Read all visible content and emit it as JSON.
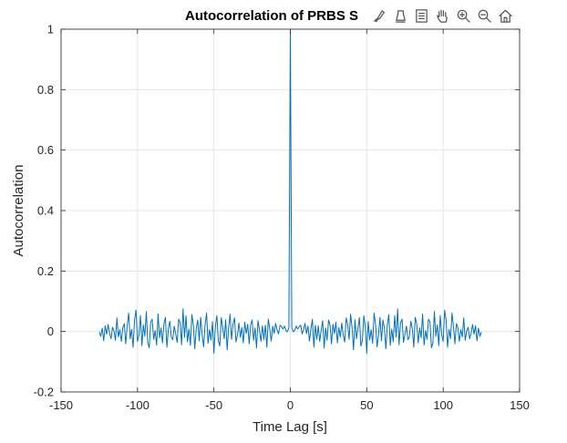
{
  "chart_data": {
    "type": "line",
    "title": "Autocorrelation of PRBS S",
    "xlabel": "Time Lag [s]",
    "ylabel": "Autocorrelation",
    "xlim": [
      -150,
      150
    ],
    "ylim": [
      -0.2,
      1
    ],
    "xticks": [
      "-150",
      "-100",
      "-50",
      "0",
      "50",
      "100",
      "150"
    ],
    "yticks": [
      "-0.2",
      "0",
      "0.2",
      "0.4",
      "0.6",
      "0.8",
      "1"
    ],
    "grid": true,
    "line_color": "#0072bd",
    "series": [
      {
        "x_range": [
          -125,
          125
        ],
        "values": [
          -0.002,
          -0.016,
          0.011,
          -0.031,
          0.019,
          -0.009,
          0.023,
          -0.005,
          -0.024,
          0.014,
          0.002,
          -0.029,
          0.045,
          -0.018,
          0.006,
          -0.033,
          0.012,
          0.026,
          -0.041,
          0.018,
          0.061,
          -0.024,
          0.007,
          -0.052,
          0.038,
          0.071,
          -0.033,
          -0.011,
          0.053,
          -0.047,
          0.022,
          -0.016,
          0.066,
          -0.038,
          -0.054,
          0.032,
          0.041,
          -0.026,
          0.003,
          -0.045,
          0.058,
          -0.021,
          0.012,
          -0.038,
          0.026,
          0.047,
          -0.052,
          0.009,
          0.034,
          -0.018,
          -0.027,
          0.018,
          -0.008,
          -0.036,
          0.041,
          0.029,
          -0.044,
          0.075,
          -0.019,
          0.052,
          -0.034,
          0.008,
          -0.046,
          0.056,
          0.022,
          -0.057,
          0.011,
          0.038,
          -0.031,
          0.047,
          -0.012,
          -0.051,
          0.023,
          0.061,
          -0.039,
          0.006,
          -0.028,
          0.033,
          -0.072,
          0.018,
          0.052,
          -0.031,
          -0.048,
          0.046,
          0.011,
          -0.024,
          0.039,
          -0.061,
          0.013,
          0.057,
          -0.026,
          0.024,
          0.045,
          -0.035,
          -0.012,
          0.028,
          -0.019,
          0.013,
          -0.038,
          0.031,
          -0.007,
          0.024,
          -0.041,
          0.022,
          0.038,
          -0.029,
          0.012,
          -0.055,
          0.036,
          0.004,
          -0.033,
          0.019,
          -0.026,
          0.021,
          -0.052,
          0.041,
          0.008,
          -0.032,
          0.018,
          -0.007,
          0.027,
          0.005,
          -0.008,
          0.021,
          0.016,
          0.008,
          0.018,
          0.004,
          -0.001,
          0.012,
          1,
          0.012,
          -0.001,
          0.004,
          0.018,
          0.008,
          0.016,
          0.021,
          -0.008,
          0.005,
          0.027,
          -0.007,
          0.018,
          -0.032,
          0.008,
          0.041,
          -0.052,
          0.021,
          -0.026,
          0.019,
          -0.033,
          0.004,
          0.036,
          -0.055,
          0.012,
          -0.029,
          0.038,
          0.022,
          -0.041,
          0.024,
          -0.007,
          0.031,
          -0.038,
          0.013,
          -0.019,
          0.028,
          -0.012,
          -0.035,
          0.045,
          0.024,
          -0.026,
          0.057,
          0.013,
          -0.061,
          0.039,
          -0.024,
          0.011,
          0.046,
          -0.048,
          -0.031,
          0.052,
          0.018,
          -0.072,
          0.033,
          -0.028,
          0.006,
          -0.039,
          0.061,
          0.023,
          -0.051,
          -0.012,
          0.047,
          -0.031,
          0.038,
          0.011,
          -0.057,
          0.022,
          0.056,
          -0.046,
          0.008,
          -0.034,
          0.052,
          -0.019,
          0.075,
          -0.044,
          0.029,
          0.041,
          -0.036,
          -0.008,
          0.018,
          -0.027,
          -0.018,
          0.034,
          0.009,
          -0.052,
          0.047,
          0.026,
          -0.038,
          0.012,
          -0.021,
          0.058,
          -0.045,
          0.003,
          -0.026,
          0.041,
          0.032,
          -0.054,
          -0.038,
          0.066,
          -0.016,
          0.022,
          -0.047,
          0.053,
          -0.011,
          -0.033,
          0.071,
          0.038,
          -0.052,
          0.007,
          -0.024,
          0.061,
          0.018,
          -0.041,
          0.026,
          0.012,
          -0.033,
          0.006,
          -0.018,
          0.045,
          -0.029,
          0.002,
          0.014,
          -0.024,
          -0.005,
          0.023,
          -0.009,
          0.019,
          -0.031,
          0.011,
          -0.016,
          -0.002
        ]
      }
    ]
  },
  "toolbar": {
    "icons": [
      "brush-icon",
      "data-tip-icon",
      "legend-icon",
      "pan-hand-icon",
      "zoom-in-icon",
      "zoom-out-icon",
      "home-icon"
    ]
  }
}
